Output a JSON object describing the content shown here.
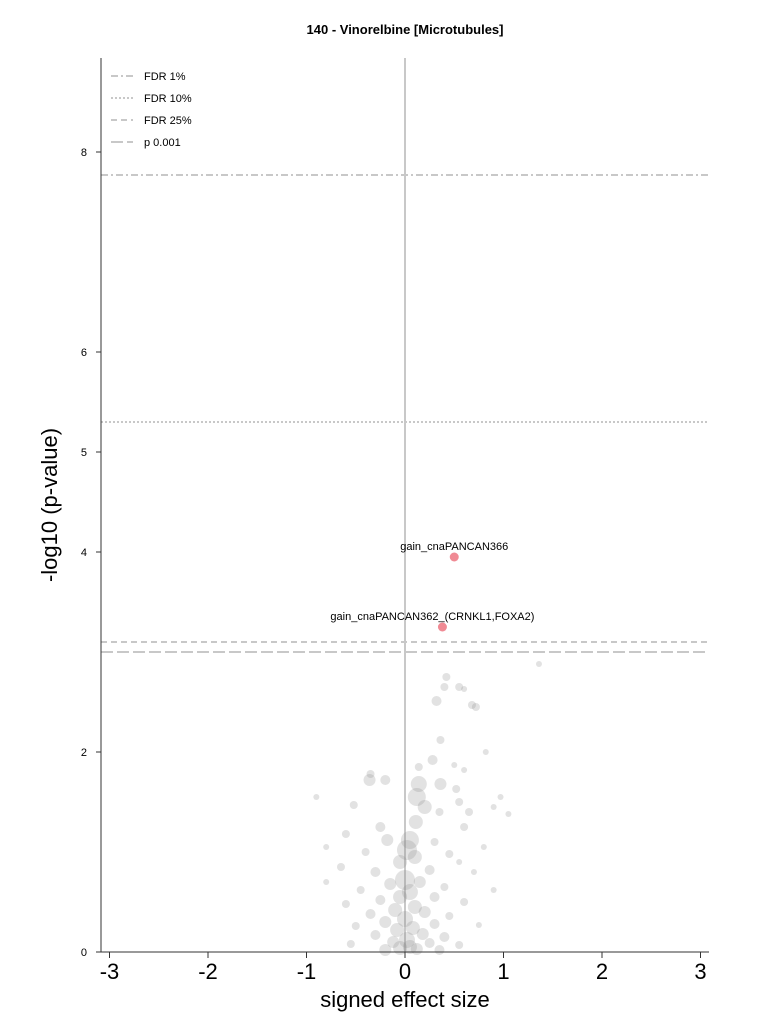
{
  "chart_data": {
    "type": "scatter",
    "title": "140 - Vinorelbine [Microtubules]",
    "xlabel": "signed effect size",
    "ylabel": "-log10 (p-value)",
    "xlim": [
      -3.1,
      3.0
    ],
    "ylim": [
      0,
      8.95
    ],
    "x_ticks": [
      "-3",
      "-2",
      "-1",
      "0",
      "1",
      "2",
      "3"
    ],
    "y_ticks": [
      "0",
      "2",
      "4",
      "5",
      "6",
      "8"
    ],
    "thresholds": [
      {
        "name": "FDR 1%",
        "y": 7.77,
        "style": "dashdot"
      },
      {
        "name": "FDR 10%",
        "y": 5.3,
        "style": "dotted"
      },
      {
        "name": "FDR 25%",
        "y": 3.1,
        "style": "dashed"
      },
      {
        "name": "p 0.001",
        "y": 3.0,
        "style": "longdash"
      }
    ],
    "legend_position": "top-left",
    "highlighted_points": [
      {
        "label": "gain_cnaPANCAN366",
        "x": 0.5,
        "y": 3.95,
        "color": "#f08a94"
      },
      {
        "label": "gain_cnaPANCAN362_(CRNKL1,FOXA2)",
        "x": 0.38,
        "y": 3.25,
        "color": "#f08a94"
      }
    ],
    "background_points": [
      {
        "x": 1.36,
        "y": 2.88,
        "s": 3
      },
      {
        "x": 0.42,
        "y": 2.75,
        "s": 4
      },
      {
        "x": 0.4,
        "y": 2.65,
        "s": 4
      },
      {
        "x": 0.55,
        "y": 2.65,
        "s": 4
      },
      {
        "x": 0.6,
        "y": 2.63,
        "s": 3
      },
      {
        "x": 0.32,
        "y": 2.51,
        "s": 5
      },
      {
        "x": 0.68,
        "y": 2.47,
        "s": 4
      },
      {
        "x": 0.72,
        "y": 2.45,
        "s": 4
      },
      {
        "x": 0.36,
        "y": 2.12,
        "s": 4
      },
      {
        "x": 0.82,
        "y": 2.0,
        "s": 3
      },
      {
        "x": 0.28,
        "y": 1.92,
        "s": 5
      },
      {
        "x": 0.5,
        "y": 1.87,
        "s": 3
      },
      {
        "x": 0.14,
        "y": 1.85,
        "s": 4
      },
      {
        "x": 0.6,
        "y": 1.82,
        "s": 3
      },
      {
        "x": -0.35,
        "y": 1.78,
        "s": 4
      },
      {
        "x": -0.2,
        "y": 1.72,
        "s": 5
      },
      {
        "x": 0.14,
        "y": 1.68,
        "s": 8
      },
      {
        "x": 0.36,
        "y": 1.68,
        "s": 6
      },
      {
        "x": 0.52,
        "y": 1.63,
        "s": 4
      },
      {
        "x": -0.36,
        "y": 1.72,
        "s": 6
      },
      {
        "x": 0.12,
        "y": 1.55,
        "s": 9
      },
      {
        "x": 0.97,
        "y": 1.55,
        "s": 3
      },
      {
        "x": -0.9,
        "y": 1.55,
        "s": 3
      },
      {
        "x": 0.2,
        "y": 1.45,
        "s": 7
      },
      {
        "x": -0.52,
        "y": 1.47,
        "s": 4
      },
      {
        "x": 0.55,
        "y": 1.5,
        "s": 4
      },
      {
        "x": 0.35,
        "y": 1.4,
        "s": 4
      },
      {
        "x": 0.65,
        "y": 1.4,
        "s": 4
      },
      {
        "x": 0.9,
        "y": 1.45,
        "s": 3
      },
      {
        "x": 1.05,
        "y": 1.38,
        "s": 3
      },
      {
        "x": 0.11,
        "y": 1.3,
        "s": 7
      },
      {
        "x": -0.25,
        "y": 1.25,
        "s": 5
      },
      {
        "x": 0.6,
        "y": 1.25,
        "s": 4
      },
      {
        "x": -0.6,
        "y": 1.18,
        "s": 4
      },
      {
        "x": 0.05,
        "y": 1.12,
        "s": 9
      },
      {
        "x": -0.18,
        "y": 1.12,
        "s": 6
      },
      {
        "x": 0.3,
        "y": 1.1,
        "s": 4
      },
      {
        "x": -0.8,
        "y": 1.05,
        "s": 3
      },
      {
        "x": 0.8,
        "y": 1.05,
        "s": 3
      },
      {
        "x": 0.02,
        "y": 1.02,
        "s": 10
      },
      {
        "x": -0.4,
        "y": 1.0,
        "s": 4
      },
      {
        "x": 0.45,
        "y": 0.98,
        "s": 4
      },
      {
        "x": 0.1,
        "y": 0.95,
        "s": 7
      },
      {
        "x": -0.05,
        "y": 0.9,
        "s": 7
      },
      {
        "x": 0.55,
        "y": 0.9,
        "s": 3
      },
      {
        "x": -0.65,
        "y": 0.85,
        "s": 4
      },
      {
        "x": 0.25,
        "y": 0.82,
        "s": 5
      },
      {
        "x": -0.3,
        "y": 0.8,
        "s": 5
      },
      {
        "x": 0.7,
        "y": 0.8,
        "s": 3
      },
      {
        "x": 0.0,
        "y": 0.72,
        "s": 10
      },
      {
        "x": 0.15,
        "y": 0.7,
        "s": 6
      },
      {
        "x": -0.15,
        "y": 0.68,
        "s": 6
      },
      {
        "x": -0.8,
        "y": 0.7,
        "s": 3
      },
      {
        "x": 0.4,
        "y": 0.65,
        "s": 4
      },
      {
        "x": -0.45,
        "y": 0.62,
        "s": 4
      },
      {
        "x": 0.9,
        "y": 0.62,
        "s": 3
      },
      {
        "x": 0.05,
        "y": 0.6,
        "s": 8
      },
      {
        "x": -0.05,
        "y": 0.55,
        "s": 7
      },
      {
        "x": 0.3,
        "y": 0.55,
        "s": 5
      },
      {
        "x": -0.25,
        "y": 0.52,
        "s": 5
      },
      {
        "x": 0.6,
        "y": 0.5,
        "s": 4
      },
      {
        "x": -0.6,
        "y": 0.48,
        "s": 4
      },
      {
        "x": 0.1,
        "y": 0.45,
        "s": 7
      },
      {
        "x": -0.1,
        "y": 0.42,
        "s": 7
      },
      {
        "x": 0.2,
        "y": 0.4,
        "s": 6
      },
      {
        "x": -0.35,
        "y": 0.38,
        "s": 5
      },
      {
        "x": 0.45,
        "y": 0.36,
        "s": 4
      },
      {
        "x": 0.0,
        "y": 0.33,
        "s": 8
      },
      {
        "x": -0.2,
        "y": 0.3,
        "s": 6
      },
      {
        "x": 0.3,
        "y": 0.28,
        "s": 5
      },
      {
        "x": -0.5,
        "y": 0.26,
        "s": 4
      },
      {
        "x": 0.75,
        "y": 0.27,
        "s": 3
      },
      {
        "x": 0.08,
        "y": 0.24,
        "s": 7
      },
      {
        "x": -0.08,
        "y": 0.22,
        "s": 7
      },
      {
        "x": 0.18,
        "y": 0.18,
        "s": 6
      },
      {
        "x": -0.3,
        "y": 0.17,
        "s": 5
      },
      {
        "x": 0.4,
        "y": 0.15,
        "s": 5
      },
      {
        "x": 0.02,
        "y": 0.12,
        "s": 8
      },
      {
        "x": -0.12,
        "y": 0.1,
        "s": 6
      },
      {
        "x": 0.25,
        "y": 0.09,
        "s": 5
      },
      {
        "x": -0.55,
        "y": 0.08,
        "s": 4
      },
      {
        "x": 0.55,
        "y": 0.07,
        "s": 4
      },
      {
        "x": 0.05,
        "y": 0.05,
        "s": 7
      },
      {
        "x": -0.05,
        "y": 0.04,
        "s": 7
      },
      {
        "x": 0.12,
        "y": 0.03,
        "s": 6
      },
      {
        "x": -0.2,
        "y": 0.02,
        "s": 6
      },
      {
        "x": 0.35,
        "y": 0.02,
        "s": 5
      }
    ]
  }
}
